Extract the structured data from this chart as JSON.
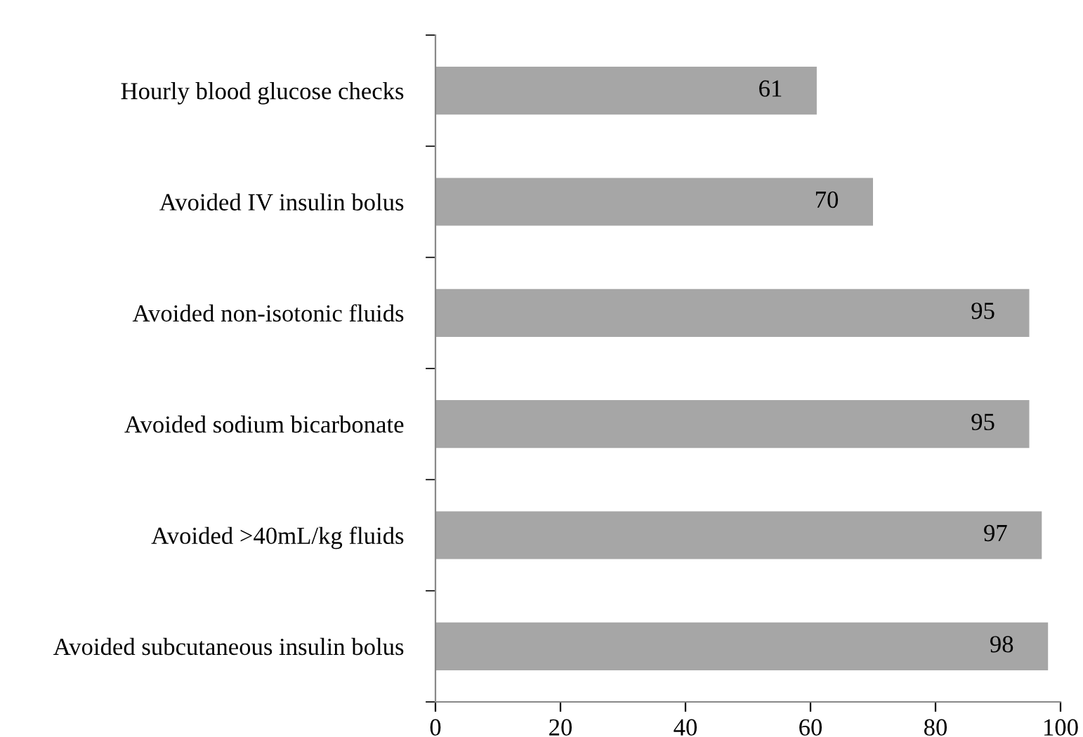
{
  "chart_data": {
    "type": "bar",
    "orientation": "horizontal",
    "categories": [
      "Hourly blood glucose checks",
      "Avoided IV insulin bolus",
      "Avoided non-isotonic fluids",
      "Avoided sodium bicarbonate",
      "Avoided >40mL/kg fluids",
      "Avoided subcutaneous insulin bolus"
    ],
    "values": [
      61,
      70,
      95,
      95,
      97,
      98
    ],
    "color": "#a6a6a6",
    "xlim": [
      0,
      100
    ],
    "xticks": [
      0,
      20,
      40,
      60,
      80,
      100
    ],
    "data_labels": true,
    "grid": false,
    "legend": false
  }
}
